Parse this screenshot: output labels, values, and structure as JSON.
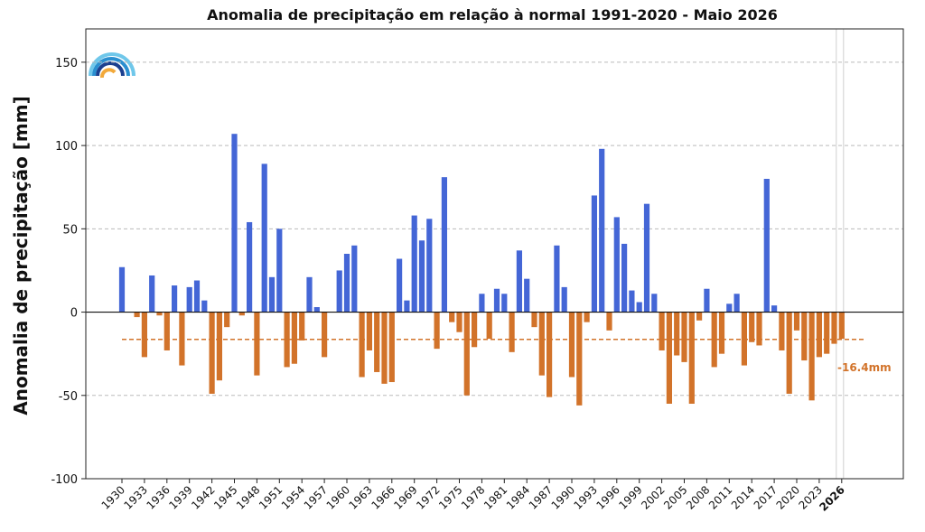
{
  "chart_data": {
    "type": "bar",
    "title": "Anomalia de precipitação em relação à normal 1991-2020 - Maio 2026",
    "xlabel": "",
    "ylabel": "Anomalia de precipitação [mm]",
    "ylim": [
      -100,
      170
    ],
    "yticks": [
      150,
      100,
      50,
      0,
      -50,
      -100
    ],
    "xticks": [
      "1930",
      "1933",
      "1936",
      "1939",
      "1942",
      "1945",
      "1948",
      "1951",
      "1954",
      "1957",
      "1960",
      "1963",
      "1966",
      "1969",
      "1972",
      "1975",
      "1978",
      "1981",
      "1984",
      "1987",
      "1990",
      "1993",
      "1996",
      "1999",
      "2002",
      "2005",
      "2008",
      "2011",
      "2014",
      "2017",
      "2020",
      "2023",
      "2026"
    ],
    "highlight_tick": "2026",
    "grid": "horizontal dashed",
    "colors": {
      "positive": "#4466d6",
      "negative": "#d2732a",
      "mean_line": "#d2732a",
      "mean_label": "#d2732a"
    },
    "mean_line": {
      "value": -16.4,
      "label": "-16.4mm"
    },
    "years": [
      1930,
      1931,
      1932,
      1933,
      1934,
      1935,
      1936,
      1937,
      1938,
      1939,
      1940,
      1941,
      1942,
      1943,
      1944,
      1945,
      1946,
      1947,
      1948,
      1949,
      1950,
      1951,
      1952,
      1953,
      1954,
      1955,
      1956,
      1957,
      1958,
      1959,
      1960,
      1961,
      1962,
      1963,
      1964,
      1965,
      1966,
      1967,
      1968,
      1969,
      1970,
      1971,
      1972,
      1973,
      1974,
      1975,
      1976,
      1977,
      1978,
      1979,
      1980,
      1981,
      1982,
      1983,
      1984,
      1985,
      1986,
      1987,
      1988,
      1989,
      1990,
      1991,
      1992,
      1993,
      1994,
      1995,
      1996,
      1997,
      1998,
      1999,
      2000,
      2001,
      2002,
      2003,
      2004,
      2005,
      2006,
      2007,
      2008,
      2009,
      2010,
      2011,
      2012,
      2013,
      2014,
      2015,
      2016,
      2017,
      2018,
      2019,
      2020,
      2021,
      2022,
      2023,
      2024,
      2025,
      2026
    ],
    "values": [
      27,
      0,
      -3,
      -27,
      22,
      -2,
      -23,
      16,
      -32,
      15,
      19,
      7,
      -49,
      -41,
      -9,
      107,
      -2,
      54,
      -38,
      89,
      21,
      50,
      -33,
      -31,
      -17,
      21,
      3,
      -27,
      0,
      25,
      35,
      40,
      -39,
      -23,
      -36,
      -43,
      -42,
      32,
      7,
      58,
      43,
      56,
      -22,
      81,
      -6,
      -12,
      -50,
      -21,
      11,
      -16,
      14,
      11,
      -24,
      37,
      20,
      -9,
      -38,
      -51,
      40,
      15,
      -39,
      -56,
      -6,
      70,
      98,
      -11,
      57,
      41,
      13,
      6,
      65,
      11,
      -23,
      -55,
      -26,
      -30,
      -55,
      -5,
      14,
      -33,
      -25,
      5,
      11,
      -32,
      -18,
      -20,
      80,
      4,
      -23,
      -49,
      -11,
      -29,
      -53,
      -27,
      -25,
      -19,
      -16
    ]
  }
}
